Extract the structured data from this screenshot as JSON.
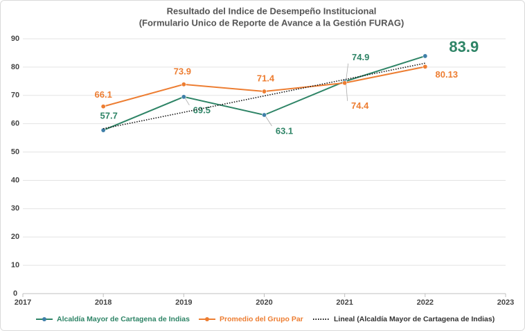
{
  "chart_data": {
    "type": "line",
    "title": "Resultado del Indice de Desempeño Institucional",
    "subtitle": "(Formulario Unico de Reporte de Avance a la Gestión FURAG)",
    "x": [
      2018,
      2019,
      2020,
      2021,
      2022
    ],
    "series": [
      {
        "name": "Alcaldía Mayor de Cartagena de Indias",
        "color": "#2e8466",
        "marker_color": "#3f7fa8",
        "values": [
          57.7,
          69.5,
          63.1,
          74.9,
          83.9
        ],
        "data_labels": true
      },
      {
        "name": "Promedio del Grupo Par",
        "color": "#ed7d31",
        "marker_color": "#ed7d31",
        "values": [
          66.1,
          73.9,
          71.4,
          74.4,
          80.13
        ],
        "data_labels": true
      },
      {
        "name": "Lineal (Alcaldía Mayor de Cartagena de Indias)",
        "color": "#111111",
        "line_style": "dotted",
        "values": [
          58.26,
          64.04,
          69.82,
          75.6,
          81.38
        ],
        "data_labels": false
      }
    ],
    "xlim": [
      2017,
      2023
    ],
    "xticks": [
      2017,
      2018,
      2019,
      2020,
      2021,
      2022,
      2023
    ],
    "ylim": [
      0,
      90
    ],
    "yticks": [
      0,
      10,
      20,
      30,
      40,
      50,
      60,
      70,
      80,
      90
    ],
    "grid": true,
    "legend": "bottom"
  }
}
